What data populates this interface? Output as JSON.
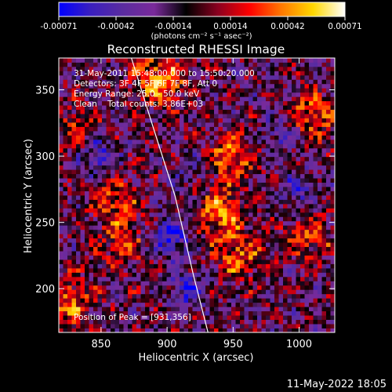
{
  "chart_data": {
    "type": "heatmap",
    "title": "Reconstructed RHESSI Image",
    "xlabel": "Heliocentric X (arcsec)",
    "ylabel": "Heliocentric Y (arcsec)",
    "xlim": [
      818,
      1027
    ],
    "ylim": [
      167,
      374
    ],
    "xticks": [
      850,
      900,
      950,
      1000
    ],
    "yticks": [
      200,
      250,
      300,
      350
    ],
    "colorbar": {
      "min": -0.00071,
      "max": 0.00071,
      "ticks": [
        "-0.00071",
        "-0.00042",
        "-0.00014",
        "0.00014",
        "0.00042",
        "0.00071"
      ],
      "units_line": "(photons cm⁻² s⁻¹ asec⁻²)",
      "colormap": [
        "#0000ff",
        "#3a1fbf",
        "#5a2ca0",
        "#7a2a9a",
        "#000000",
        "#8a0020",
        "#ff0000",
        "#ff7800",
        "#ffd800",
        "#ffffff"
      ]
    },
    "annotations": [
      "31-May-2011 15:48:00.000 to 15:50:20.000",
      "Detectors: 3F 4F 5F 6F 7F 8F, Att 0",
      "Energy Range: 25.0 - 50.0 keV",
      "Clean    Total counts: 3.86E+03"
    ],
    "peak_label": "Position of Peak = [931,356]",
    "limb_curve": {
      "x": [
        873,
        890,
        906,
        920,
        931
      ],
      "y": [
        374,
        320,
        270,
        210,
        167
      ]
    },
    "sources": [
      {
        "x": 895,
        "y": 358,
        "weight": 1.0
      },
      {
        "x": 948,
        "y": 300,
        "weight": 0.75
      },
      {
        "x": 940,
        "y": 258,
        "weight": 0.85
      },
      {
        "x": 955,
        "y": 225,
        "weight": 0.7
      },
      {
        "x": 862,
        "y": 265,
        "weight": 0.6
      },
      {
        "x": 865,
        "y": 232,
        "weight": 0.5
      },
      {
        "x": 825,
        "y": 190,
        "weight": 0.75
      },
      {
        "x": 1010,
        "y": 330,
        "weight": 0.65
      },
      {
        "x": 1008,
        "y": 240,
        "weight": 0.55
      },
      {
        "x": 830,
        "y": 320,
        "weight": 0.45
      }
    ],
    "sinks": [
      {
        "x": 848,
        "y": 300,
        "weight": 0.8
      },
      {
        "x": 903,
        "y": 240,
        "weight": 0.9
      },
      {
        "x": 915,
        "y": 200,
        "weight": 0.7
      },
      {
        "x": 1000,
        "y": 275,
        "weight": 0.6
      },
      {
        "x": 985,
        "y": 315,
        "weight": 0.5
      },
      {
        "x": 920,
        "y": 290,
        "weight": 0.4
      }
    ]
  },
  "footer": {
    "date": "11-May-2022 18:05"
  }
}
